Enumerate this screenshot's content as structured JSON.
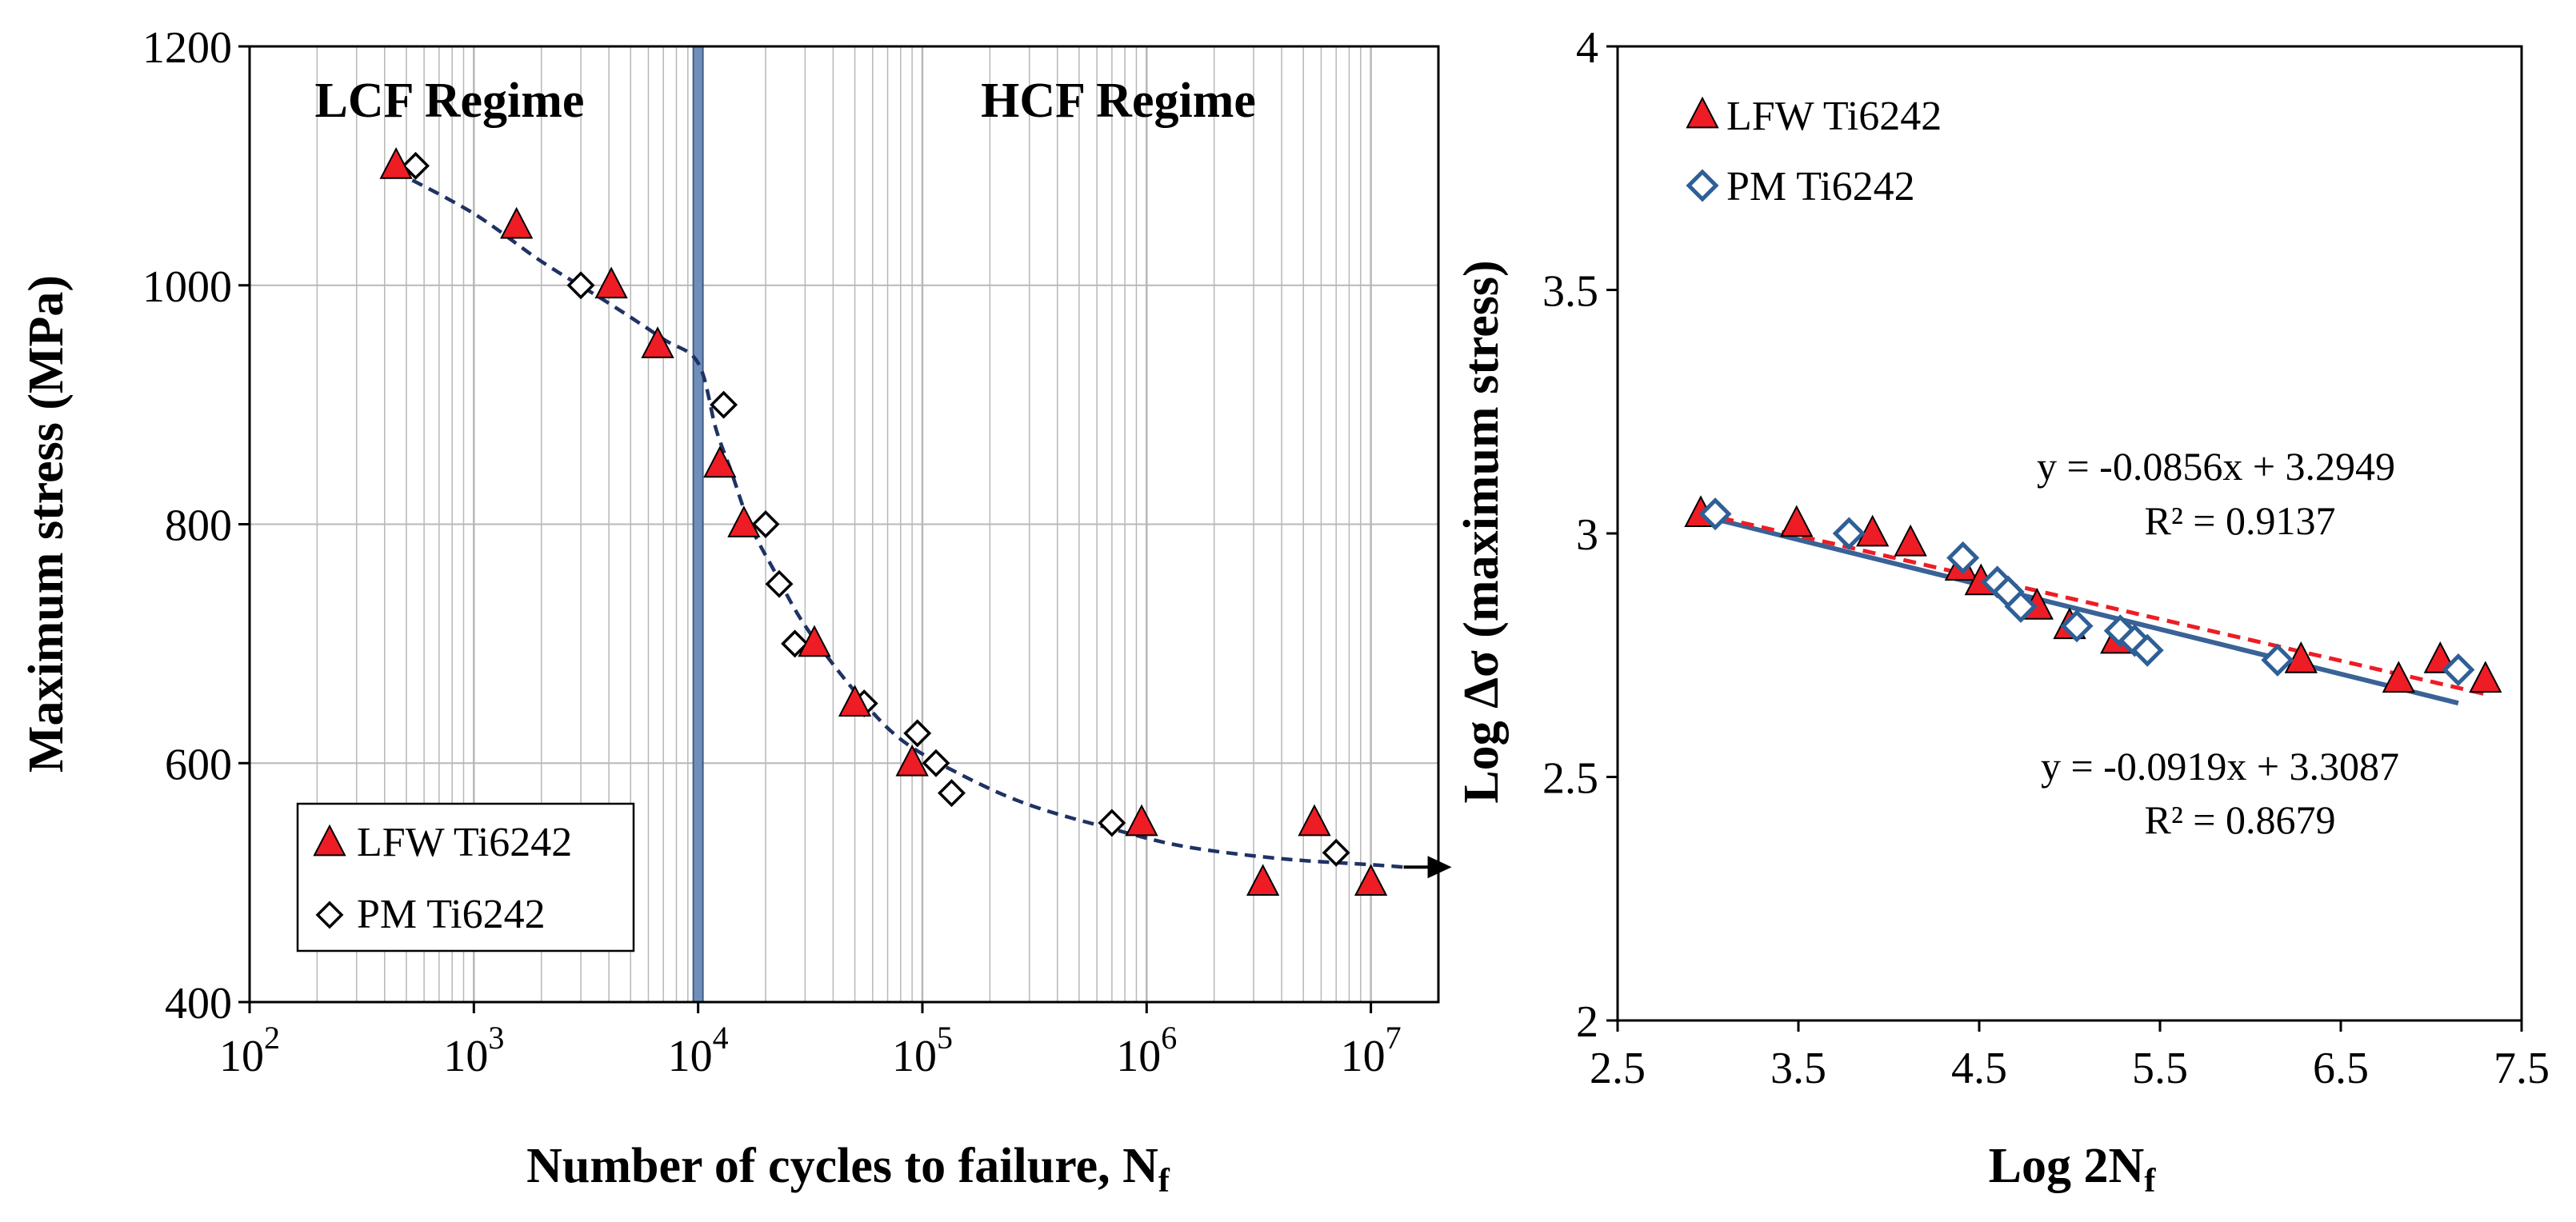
{
  "colors": {
    "lfw": "#ee1c25",
    "pm": "#2e5f96",
    "pm_marker_left": "#000000",
    "curve": "#1f3264",
    "divider": "#6f8fb8",
    "fit_lfw": "#ee1c25",
    "fit_pm": "#3a6296",
    "grid": "#b8b8b8"
  },
  "chart_data": [
    {
      "type": "scatter",
      "xscale": "log",
      "xlim": [
        100,
        20000000
      ],
      "ylim": [
        400,
        1200
      ],
      "xlabel": "Number of cycles to failure, N",
      "xlabel_sub": "f",
      "ylabel": "Maximum stress (MPa)",
      "xticks": [
        100,
        1000,
        10000,
        100000,
        1000000,
        10000000
      ],
      "xtick_labels": [
        {
          "base": "10",
          "exp": "2"
        },
        {
          "base": "10",
          "exp": "3"
        },
        {
          "base": "10",
          "exp": "4"
        },
        {
          "base": "10",
          "exp": "5"
        },
        {
          "base": "10",
          "exp": "6"
        },
        {
          "base": "10",
          "exp": "7"
        }
      ],
      "yticks": [
        400,
        600,
        800,
        1000,
        1200
      ],
      "ytick_labels": [
        "400",
        "600",
        "800",
        "1000",
        "1200"
      ],
      "grid": true,
      "annotations": [
        {
          "text": "LCF Regime"
        },
        {
          "text": "HCF Regime"
        }
      ],
      "divider_x": 10000,
      "legend_position": "bottom-left",
      "series": [
        {
          "name": "LFW Ti6242",
          "marker": "triangle",
          "points": [
            [
              450,
              1100
            ],
            [
              1550,
              1050
            ],
            [
              4100,
              1000
            ],
            [
              6600,
              950
            ],
            [
              12500,
              850
            ],
            [
              16000,
              800
            ],
            [
              33000,
              700
            ],
            [
              50000,
              650
            ],
            [
              90000,
              600
            ],
            [
              950000,
              550
            ],
            [
              3300000,
              500
            ],
            [
              5600000,
              550
            ],
            [
              10000000,
              500
            ]
          ]
        },
        {
          "name": "PM Ti6242",
          "marker": "diamond",
          "points": [
            [
              550,
              1100
            ],
            [
              3000,
              1000
            ],
            [
              13000,
              900
            ],
            [
              20000,
              800
            ],
            [
              23000,
              750
            ],
            [
              27000,
              700
            ],
            [
              55000,
              650
            ],
            [
              95000,
              625
            ],
            [
              115000,
              600
            ],
            [
              135000,
              575
            ],
            [
              700000,
              550
            ],
            [
              7000000,
              525
            ]
          ]
        }
      ],
      "trend_curve": [
        [
          450,
          1095
        ],
        [
          1000,
          1060
        ],
        [
          2000,
          1020
        ],
        [
          4000,
          985
        ],
        [
          7000,
          955
        ],
        [
          10000,
          935
        ],
        [
          12000,
          880
        ],
        [
          14000,
          845
        ],
        [
          17000,
          800
        ],
        [
          22000,
          760
        ],
        [
          30000,
          715
        ],
        [
          50000,
          660
        ],
        [
          80000,
          620
        ],
        [
          150000,
          590
        ],
        [
          300000,
          565
        ],
        [
          700000,
          545
        ],
        [
          1500000,
          530
        ],
        [
          4000000,
          520
        ],
        [
          10000000,
          515
        ],
        [
          14000000,
          513
        ]
      ]
    },
    {
      "type": "scatter",
      "xlim": [
        2.5,
        7.5
      ],
      "ylim": [
        2,
        4
      ],
      "xlabel": "Log 2N",
      "xlabel_sub": "f",
      "ylabel": "Log Δσ (maximum stress)",
      "xticks": [
        2.5,
        3.5,
        4.5,
        5.5,
        6.5,
        7.5
      ],
      "xtick_labels": [
        "2.5",
        "3.5",
        "4.5",
        "5.5",
        "6.5",
        "7.5"
      ],
      "yticks": [
        2,
        2.5,
        3,
        3.5,
        4
      ],
      "ytick_labels": [
        "2",
        "2.5",
        "3",
        "3.5",
        "4"
      ],
      "grid": false,
      "legend_position": "top-left",
      "series": [
        {
          "name": "LFW Ti6242",
          "marker": "triangle",
          "points": [
            [
              2.96,
              3.04
            ],
            [
              3.49,
              3.02
            ],
            [
              3.91,
              3.0
            ],
            [
              4.12,
              2.98
            ],
            [
              4.4,
              2.93
            ],
            [
              4.51,
              2.9
            ],
            [
              4.82,
              2.85
            ],
            [
              5.0,
              2.81
            ],
            [
              5.26,
              2.78
            ],
            [
              6.28,
              2.74
            ],
            [
              6.82,
              2.7
            ],
            [
              7.05,
              2.74
            ],
            [
              7.3,
              2.7
            ]
          ],
          "fit": {
            "slope": -0.0856,
            "intercept": 3.2949,
            "x_range": [
              2.96,
              7.3
            ]
          },
          "equation": "y = -0.0856x + 3.2949",
          "r2": "R² = 0.9137"
        },
        {
          "name": "PM Ti6242",
          "marker": "diamond",
          "points": [
            [
              3.04,
              3.04
            ],
            [
              3.78,
              3.0
            ],
            [
              4.41,
              2.95
            ],
            [
              4.6,
              2.9
            ],
            [
              4.66,
              2.88
            ],
            [
              4.73,
              2.85
            ],
            [
              5.04,
              2.81
            ],
            [
              5.28,
              2.8
            ],
            [
              5.36,
              2.78
            ],
            [
              5.43,
              2.76
            ],
            [
              6.15,
              2.74
            ],
            [
              7.15,
              2.72
            ]
          ],
          "fit": {
            "slope": -0.0919,
            "intercept": 3.3087,
            "x_range": [
              2.96,
              7.15
            ]
          },
          "equation": "y = -0.0919x + 3.3087",
          "r2": "R² = 0.8679"
        }
      ]
    }
  ]
}
